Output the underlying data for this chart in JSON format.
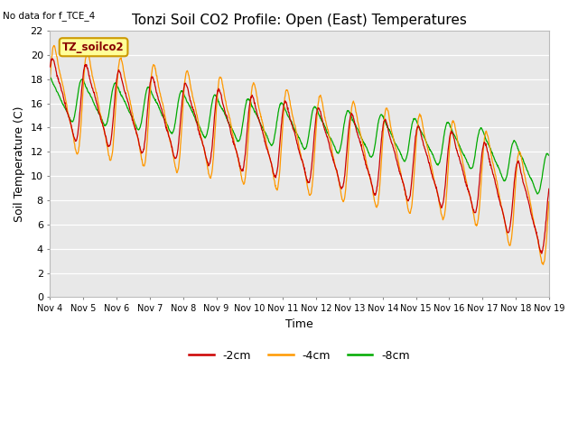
{
  "title": "Tonzi Soil CO2 Profile: Open (East) Temperatures",
  "no_data_text": "No data for f_TCE_4",
  "xlabel": "Time",
  "ylabel": "Soil Temperature (C)",
  "legend_label": "TZ_soilco2",
  "ylim": [
    0,
    22
  ],
  "series_labels": [
    "-2cm",
    "-4cm",
    "-8cm"
  ],
  "series_colors": [
    "#cc0000",
    "#ff9900",
    "#00aa00"
  ],
  "plot_bg_color": "#e8e8e8",
  "fig_bg_color": "#ffffff",
  "title_fontsize": 11,
  "axis_label_fontsize": 9,
  "tick_fontsize": 8,
  "legend_box_color": "#ffff99",
  "legend_box_edge": "#cc9900",
  "x_tick_labels": [
    "Nov 4",
    "Nov 5",
    "Nov 6",
    "Nov 7",
    "Nov 8",
    "Nov 9",
    "Nov 10",
    "Nov 11",
    "Nov 12",
    "Nov 13",
    "Nov 14",
    "Nov 15",
    "Nov 16",
    "Nov 17",
    "Nov 18",
    "Nov 19"
  ],
  "n_days": 15,
  "base_temp": 16.5,
  "trend_total": -7.5,
  "amp_2cm": 3.2,
  "amp_4cm": 4.3,
  "amp_8cm": 1.8,
  "phase_2cm": 0.5,
  "phase_4cm": 0.2,
  "phase_8cm": 1.2
}
